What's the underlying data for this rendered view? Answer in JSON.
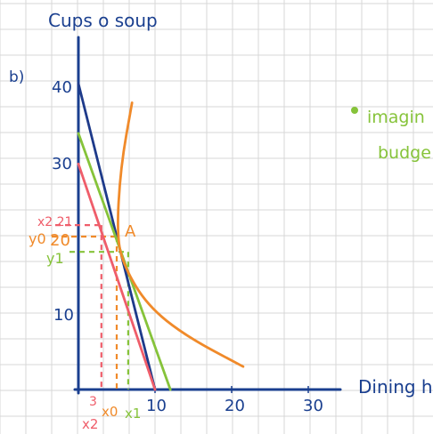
{
  "part_label": "b)",
  "note_imaginary": "imagin",
  "note_budget": "budge",
  "colors": {
    "grid": "#d7d7d7",
    "axis": "#1a3f8f",
    "orange": "#f08a2a",
    "green": "#86c33a",
    "red": "#ef5d6a",
    "navy": "#1e3a8a"
  },
  "chart_data": {
    "type": "line",
    "title": "",
    "xlabel": "Dining hall",
    "ylabel": "Cups o soup",
    "xlim": [
      0,
      35
    ],
    "ylim": [
      0,
      46
    ],
    "x_ticks": [
      "10",
      "20",
      "30"
    ],
    "y_ticks": [
      "10",
      "20",
      "30",
      "40"
    ],
    "grid": true,
    "series": [
      {
        "key": "navy",
        "points": [
          [
            0,
            40
          ],
          [
            10,
            0
          ]
        ]
      },
      {
        "key": "green",
        "points": [
          [
            0,
            33.5
          ],
          [
            12,
            0
          ]
        ]
      },
      {
        "key": "red",
        "points": [
          [
            0,
            29.5
          ],
          [
            10,
            0
          ]
        ]
      },
      {
        "key": "orange",
        "points": [
          [
            7,
            37.5
          ],
          [
            5.5,
            29
          ],
          [
            5,
            20
          ],
          [
            6,
            16
          ],
          [
            9,
            11
          ],
          [
            14,
            7
          ],
          [
            21.5,
            3
          ]
        ]
      }
    ],
    "point_label": "A",
    "point_A": [
      5,
      20
    ],
    "annotations": {
      "y0": "y0",
      "y0_value": "20",
      "y1": "y1",
      "x2_y": "x2 21",
      "x2": "x2",
      "x2_value": "3",
      "x0": "x0",
      "x1": "x1"
    },
    "guides": {
      "orange_y": 20,
      "red_y": 21.5,
      "green_y": 18,
      "red_x": 3,
      "orange_x": 5,
      "green_x": 6.5
    }
  }
}
